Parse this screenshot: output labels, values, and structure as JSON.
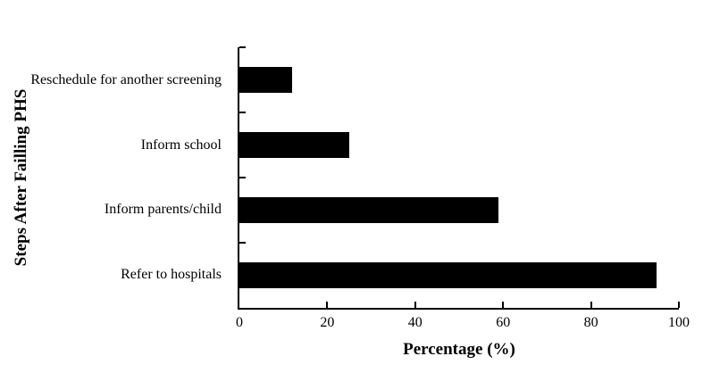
{
  "figure": {
    "background": "#ffffff",
    "text_color": "#000000"
  },
  "chart_data": {
    "type": "bar",
    "orientation": "horizontal",
    "title": "",
    "xlabel": "Percentage (%)",
    "ylabel": "Steps After Failling PHS",
    "categories": [
      "Reschedule for another screening",
      "Inform school",
      "Inform parents/child",
      "Refer to hospitals"
    ],
    "values": [
      12,
      25,
      59,
      95
    ],
    "xlim": [
      0,
      100
    ],
    "x_tick_labels": [
      "0",
      "20",
      "40",
      "60",
      "80",
      "100"
    ],
    "x_tick_values": [
      0,
      20,
      40,
      60,
      80,
      100
    ],
    "bar_color": "#000000",
    "axis_color": "#000000",
    "grid": false,
    "legend": "none"
  }
}
